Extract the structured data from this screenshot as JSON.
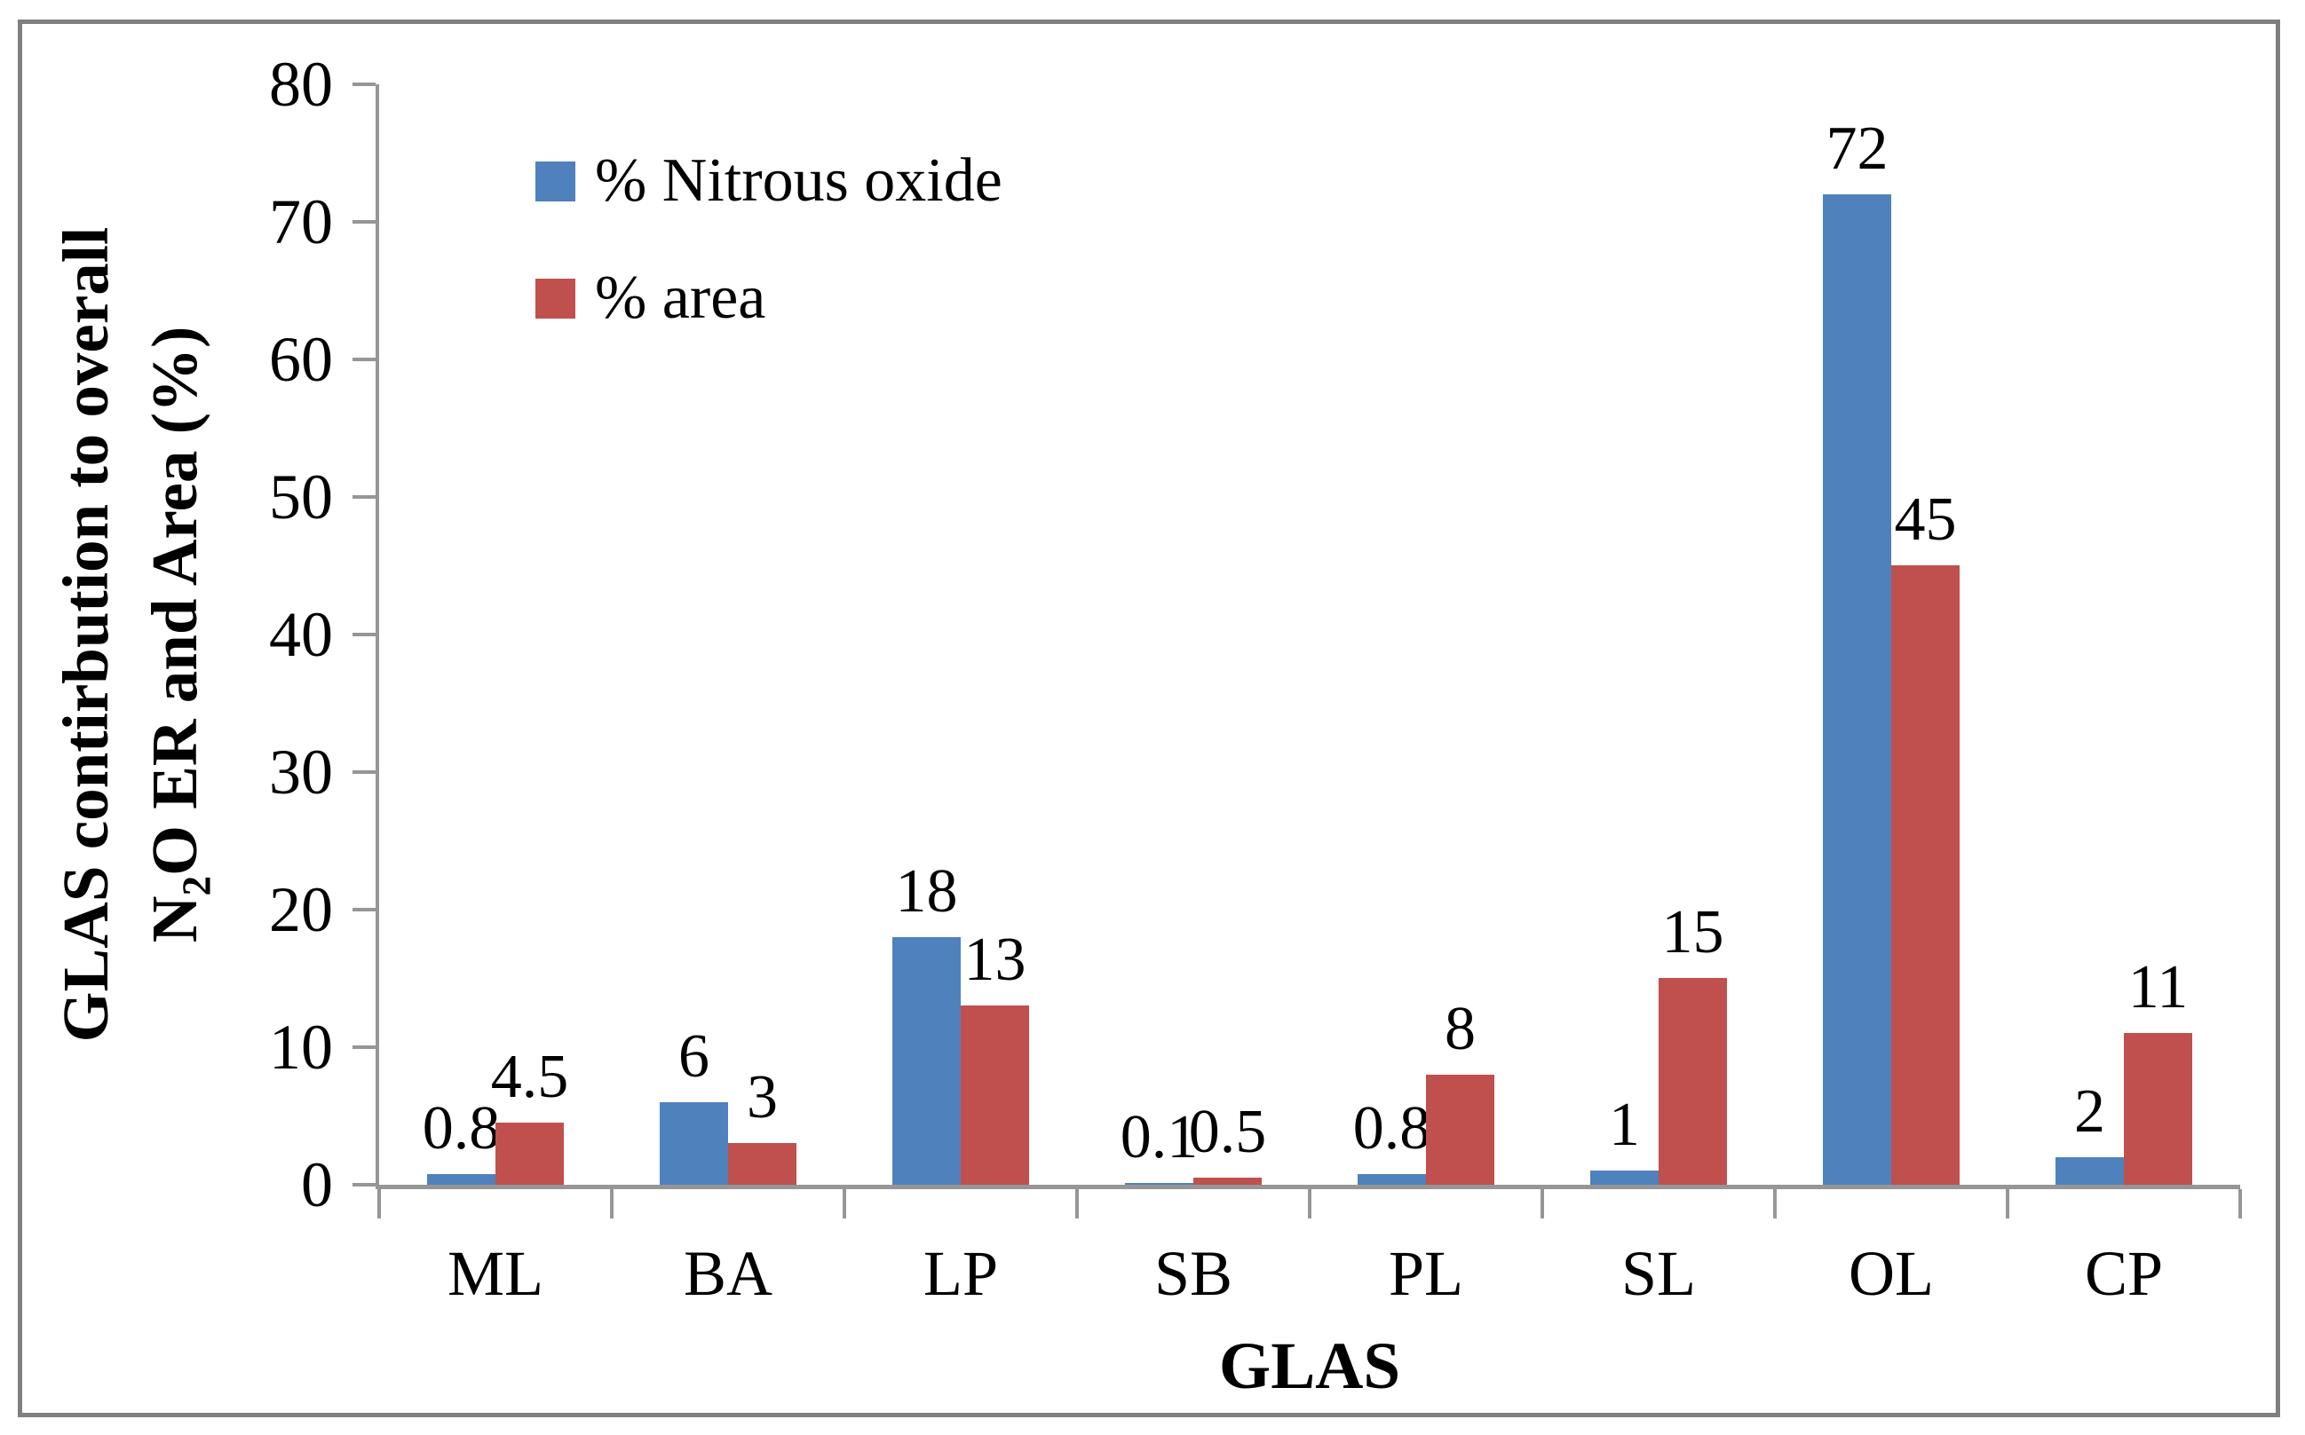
{
  "chart_data": {
    "type": "bar",
    "categories": [
      "ML",
      "BA",
      "LP",
      "SB",
      "PL",
      "SL",
      "OL",
      "CP"
    ],
    "series": [
      {
        "name": "% Nitrous oxide",
        "color": "#4F81BD",
        "values": [
          0.8,
          6,
          18,
          0.1,
          0.8,
          1,
          72,
          2
        ]
      },
      {
        "name": "% area",
        "color": "#C0504D",
        "values": [
          4.5,
          3,
          13,
          0.5,
          8,
          15,
          45,
          11
        ]
      }
    ],
    "xlabel": "GLAS",
    "ylabel_plain": "GLAS contirbution to overall N2O ER and Area (%)",
    "ylabel_line1": "GLAS contirbution to overall",
    "ylabel_line2_parts": {
      "pre": "N",
      "sub": "2",
      "post": "O ER and Area (%)"
    },
    "ylim": [
      0,
      80
    ],
    "yticks": [
      0,
      10,
      20,
      30,
      40,
      50,
      60,
      70,
      80
    ],
    "grid": false,
    "legend_position": "inside-top-left",
    "axis_color": "#969696",
    "frame_color": "#7f7f7f"
  }
}
